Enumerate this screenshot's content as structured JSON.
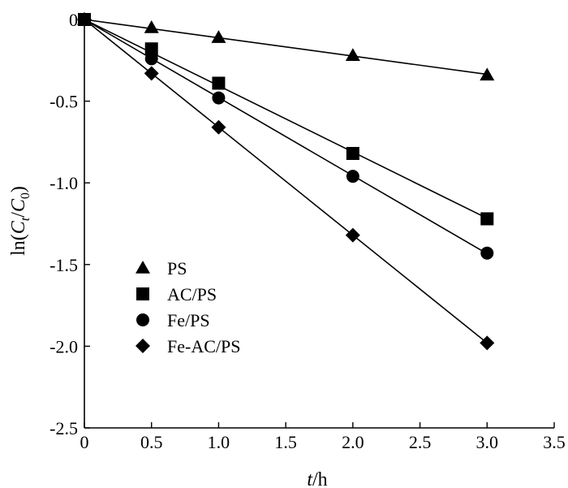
{
  "chart_data": {
    "type": "scatter",
    "title": "",
    "xlabel_italic": "t",
    "xlabel_rest": "/h",
    "ylabel": {
      "prefix": "ln(",
      "c1": "C",
      "sub1": "t",
      "slash": "/",
      "c2": "C",
      "sub2": "0",
      "suffix": ")"
    },
    "xlim": [
      0,
      3.5
    ],
    "ylim": [
      -2.5,
      0
    ],
    "x_ticks": [
      "0",
      "0.5",
      "1.0",
      "1.5",
      "2.0",
      "2.5",
      "3.0",
      "3.5"
    ],
    "x_tick_values": [
      0,
      0.5,
      1.0,
      1.5,
      2.0,
      2.5,
      3.0,
      3.5
    ],
    "y_ticks": [
      "0",
      "-0.5",
      "-1.0",
      "-1.5",
      "-2.0",
      "-2.5"
    ],
    "y_tick_values": [
      0,
      -0.5,
      -1.0,
      -1.5,
      -2.0,
      -2.5
    ],
    "grid": false,
    "legend_position": "lower-left",
    "series": [
      {
        "name": "PS",
        "marker": "triangle",
        "fit": true,
        "x": [
          0,
          0.5,
          1.0,
          2.0,
          3.0
        ],
        "y": [
          0,
          -0.05,
          -0.11,
          -0.22,
          -0.34
        ]
      },
      {
        "name": "AC/PS",
        "marker": "square",
        "fit": true,
        "x": [
          0,
          0.5,
          1.0,
          2.0,
          3.0
        ],
        "y": [
          0,
          -0.18,
          -0.39,
          -0.82,
          -1.22
        ]
      },
      {
        "name": "Fe/PS",
        "marker": "circle",
        "fit": true,
        "x": [
          0,
          0.5,
          1.0,
          2.0,
          3.0
        ],
        "y": [
          0,
          -0.24,
          -0.48,
          -0.96,
          -1.43
        ]
      },
      {
        "name": "Fe-AC/PS",
        "marker": "diamond",
        "fit": true,
        "x": [
          0,
          0.5,
          1.0,
          2.0,
          3.0
        ],
        "y": [
          0,
          -0.33,
          -0.66,
          -1.32,
          -1.98
        ]
      }
    ]
  }
}
